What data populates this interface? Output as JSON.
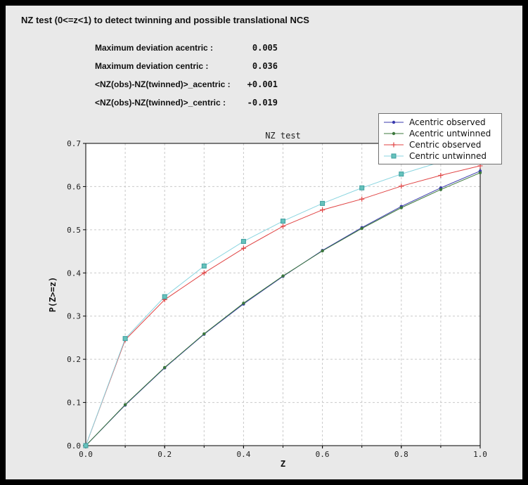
{
  "header": {
    "title": "NZ test (0<=z<1) to detect twinning and possible translational NCS"
  },
  "stats": {
    "rows": [
      {
        "label": "Maximum deviation acentric :",
        "value": "0.005"
      },
      {
        "label": "Maximum deviation centric :",
        "value": "0.036"
      },
      {
        "label": "<NZ(obs)-NZ(twinned)>_acentric :",
        "value": "+0.001"
      },
      {
        "label": "<NZ(obs)-NZ(twinned)>_centric :",
        "value": "-0.019"
      }
    ]
  },
  "chart_data": {
    "type": "line",
    "title": "NZ test",
    "xlabel": "Z",
    "ylabel": "P(Z>=z)",
    "xlim": [
      0.0,
      1.0
    ],
    "ylim": [
      0.0,
      0.7
    ],
    "xticks": [
      0.0,
      0.2,
      0.4,
      0.6,
      0.8,
      1.0
    ],
    "yticks": [
      0.0,
      0.1,
      0.2,
      0.3,
      0.4,
      0.5,
      0.6,
      0.7
    ],
    "xgrid": [
      0.1,
      0.2,
      0.3,
      0.4,
      0.5,
      0.6,
      0.7,
      0.8,
      0.9
    ],
    "ygrid": [
      0.1,
      0.2,
      0.3,
      0.4,
      0.5,
      0.6
    ],
    "grid": true,
    "legend_position": "top-right",
    "x": [
      0.0,
      0.1,
      0.2,
      0.3,
      0.4,
      0.5,
      0.6,
      0.7,
      0.8,
      0.9,
      1.0
    ],
    "series": [
      {
        "name": "Acentric observed",
        "color": "#3a3aad",
        "marker": "dot",
        "values": [
          0.0,
          0.094,
          0.18,
          0.258,
          0.328,
          0.392,
          0.452,
          0.505,
          0.554,
          0.597,
          0.636
        ]
      },
      {
        "name": "Acentric untwinned",
        "color": "#3c783c",
        "marker": "dot",
        "values": [
          0.0,
          0.095,
          0.181,
          0.259,
          0.33,
          0.393,
          0.451,
          0.503,
          0.551,
          0.593,
          0.632
        ]
      },
      {
        "name": "Centric observed",
        "color": "#e04343",
        "marker": "plus",
        "values": [
          0.0,
          0.245,
          0.338,
          0.4,
          0.457,
          0.508,
          0.546,
          0.571,
          0.601,
          0.626,
          0.648
        ]
      },
      {
        "name": "Centric untwinned",
        "color": "#8ad5e0",
        "marker": "square",
        "marker_fill": "#66c2bc",
        "marker_edge": "#3d9e9e",
        "values": [
          0.0,
          0.248,
          0.345,
          0.416,
          0.473,
          0.52,
          0.561,
          0.597,
          0.629,
          0.657,
          0.683
        ]
      }
    ],
    "plot_bg": "#ffffff",
    "window_bg": "#e9e9e9",
    "frame_color": "#000000",
    "grid_color": "#c9c9c9"
  }
}
